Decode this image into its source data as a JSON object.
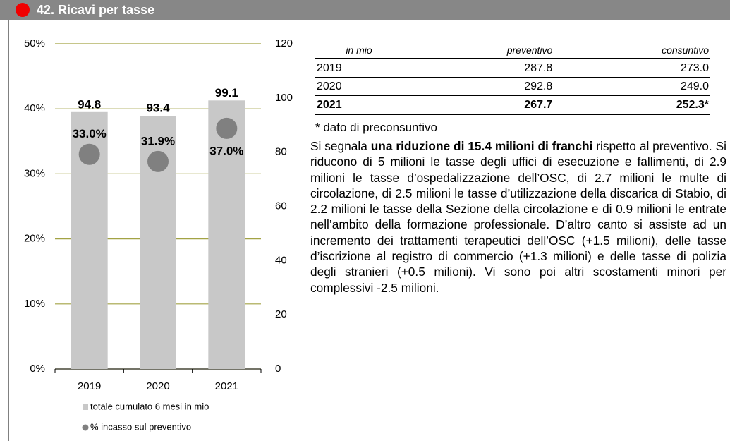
{
  "header": {
    "title": "42. Ricavi per tasse"
  },
  "chart_data": {
    "type": "combo",
    "categories": [
      "2019",
      "2020",
      "2021"
    ],
    "series": [
      {
        "name": "totale cumulato 6 mesi in mio",
        "type": "bar",
        "color": "#c8c8c8",
        "axis": "y2",
        "values": [
          94.8,
          93.4,
          99.1
        ]
      },
      {
        "name": "% incasso sul preventivo",
        "type": "scatter",
        "color": "#808080",
        "values": [
          33.0,
          31.9,
          37.0
        ],
        "value_labels": [
          "33.0%",
          "31.9%",
          "37.0%"
        ]
      }
    ],
    "ylim": [
      0,
      50
    ],
    "yticks": [
      {
        "value": 0,
        "label": "0%"
      },
      {
        "value": 10,
        "label": "10%"
      },
      {
        "value": 20,
        "label": "20%"
      },
      {
        "value": 30,
        "label": "30%"
      },
      {
        "value": 40,
        "label": "40%"
      },
      {
        "value": 50,
        "label": "50%"
      }
    ],
    "y2lim": [
      0,
      120
    ],
    "y2ticks": [
      0,
      20,
      40,
      60,
      80,
      100,
      120
    ],
    "grid": true,
    "grid_color": "#a3a345"
  },
  "table": {
    "header": [
      "in mio",
      "preventivo",
      "consuntivo"
    ],
    "rows": [
      [
        "2019",
        "287.8",
        "273.0"
      ],
      [
        "2020",
        "292.8",
        "249.0"
      ],
      [
        "2021",
        "267.7",
        "252.3*"
      ]
    ]
  },
  "note": "* dato di preconsuntivo",
  "paragraph": [
    "Si segnala ",
    "una riduzione di 15.4 milioni di franchi",
    " rispetto al preventivo. Si riducono di 5 milioni le tasse degli uffici di esecuzione e fallimenti, di 2.9 milioni le tasse d’ospedalizzazione dell’OSC, di 2.7 milioni le multe di circolazione, di 2.5 milioni le tasse d’utilizzazione della discarica di Stabio, di 2.2 milioni le tasse della Sezione della circolazione e di 0.9 milioni le entrate nell’ambito della formazione professionale. D’altro canto si assiste ad un incremento dei trattamenti terapeutici dell’OSC (+1.5 milioni), delle tasse d’iscrizione al registro di commercio (+1.3 milioni) e delle tasse di polizia degli stranieri (+0.5 milioni). Vi sono poi altri scostamenti minori per complessivi -2.5 milioni."
  ]
}
